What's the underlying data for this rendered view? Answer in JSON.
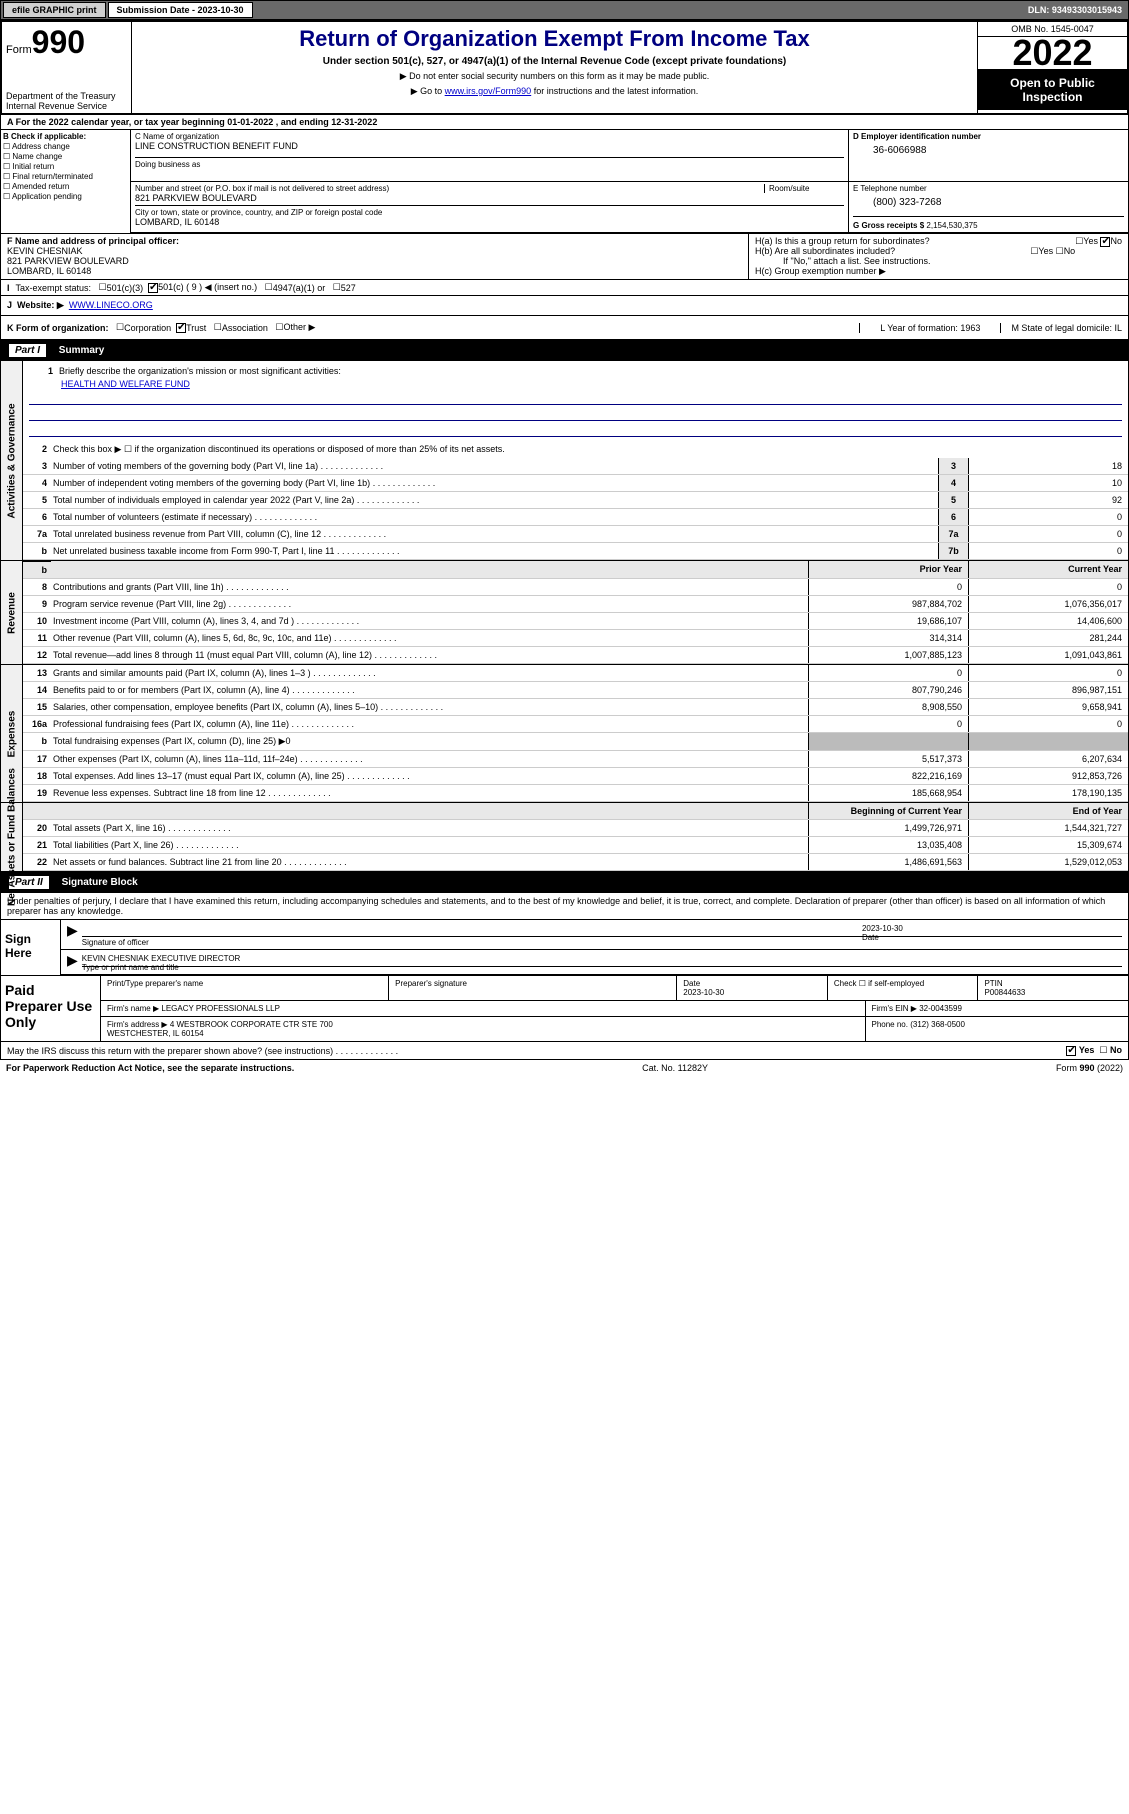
{
  "top": {
    "efile": "efile GRAPHIC print",
    "sub_label": "Submission Date - 2023-10-30",
    "dln": "DLN: 93493303015943"
  },
  "header": {
    "form_word": "Form",
    "form_num": "990",
    "title": "Return of Organization Exempt From Income Tax",
    "sub": "Under section 501(c), 527, or 4947(a)(1) of the Internal Revenue Code (except private foundations)",
    "note1": "▶ Do not enter social security numbers on this form as it may be made public.",
    "note2_pre": "▶ Go to ",
    "note2_link": "www.irs.gov/Form990",
    "note2_post": " for instructions and the latest information.",
    "dept": "Department of the Treasury\nInternal Revenue Service",
    "omb": "OMB No. 1545-0047",
    "year": "2022",
    "open": "Open to Public Inspection"
  },
  "row_a": "A For the 2022 calendar year, or tax year beginning 01-01-2022   , and ending 12-31-2022",
  "col_b": {
    "hdr": "B Check if applicable:",
    "items": [
      "Address change",
      "Name change",
      "Initial return",
      "Final return/terminated",
      "Amended return",
      "Application pending"
    ]
  },
  "col_c": {
    "name_lbl": "C Name of organization",
    "name": "LINE CONSTRUCTION BENEFIT FUND",
    "dba_lbl": "Doing business as",
    "addr_lbl": "Number and street (or P.O. box if mail is not delivered to street address)",
    "room_lbl": "Room/suite",
    "addr": "821 PARKVIEW BOULEVARD",
    "city_lbl": "City or town, state or province, country, and ZIP or foreign postal code",
    "city": "LOMBARD, IL  60148"
  },
  "col_d": {
    "lbl": "D Employer identification number",
    "val": "36-6066988",
    "e_lbl": "E Telephone number",
    "e_val": "(800) 323-7268",
    "g_lbl": "G Gross receipts $",
    "g_val": "2,154,530,375"
  },
  "fgh": {
    "f_lbl": "F Name and address of principal officer:",
    "f_val": "KEVIN CHESNIAK\n821 PARKVIEW BOULEVARD\nLOMBARD, IL  60148",
    "ha": "H(a)  Is this a group return for subordinates?",
    "hb": "H(b)  Are all subordinates included?",
    "hb_note": "If \"No,\" attach a list. See instructions.",
    "hc": "H(c)  Group exemption number ▶",
    "yes": "Yes",
    "no": "No"
  },
  "row_i": {
    "lbl": "I",
    "txt": "Tax-exempt status:",
    "o1": "501(c)(3)",
    "o2": "501(c) ( 9 ) ◀ (insert no.)",
    "o3": "4947(a)(1) or",
    "o4": "527"
  },
  "row_j": {
    "lbl": "J",
    "txt": "Website: ▶",
    "link": "WWW.LINECO.ORG"
  },
  "row_k": {
    "lbl": "K Form of organization:",
    "o1": "Corporation",
    "o2": "Trust",
    "o3": "Association",
    "o4": "Other ▶",
    "l": "L Year of formation: 1963",
    "m": "M State of legal domicile: IL"
  },
  "part1": {
    "tag": "Part I",
    "title": "Summary"
  },
  "p1": {
    "l1_lbl": "Briefly describe the organization's mission or most significant activities:",
    "l1_val": "HEALTH AND WELFARE FUND",
    "l2": "Check this box ▶ ☐  if the organization discontinued its operations or disposed of more than 25% of its net assets.",
    "lines_ag": [
      {
        "n": "3",
        "t": "Number of voting members of the governing body (Part VI, line 1a)",
        "b": "3",
        "v": "18"
      },
      {
        "n": "4",
        "t": "Number of independent voting members of the governing body (Part VI, line 1b)",
        "b": "4",
        "v": "10"
      },
      {
        "n": "5",
        "t": "Total number of individuals employed in calendar year 2022 (Part V, line 2a)",
        "b": "5",
        "v": "92"
      },
      {
        "n": "6",
        "t": "Total number of volunteers (estimate if necessary)",
        "b": "6",
        "v": "0"
      },
      {
        "n": "7a",
        "t": "Total unrelated business revenue from Part VIII, column (C), line 12",
        "b": "7a",
        "v": "0"
      },
      {
        "n": "b",
        "t": "Net unrelated business taxable income from Form 990-T, Part I, line 11",
        "b": "7b",
        "v": "0"
      }
    ],
    "py": "Prior Year",
    "cy": "Current Year",
    "rev": [
      {
        "n": "8",
        "t": "Contributions and grants (Part VIII, line 1h)",
        "p": "0",
        "c": "0"
      },
      {
        "n": "9",
        "t": "Program service revenue (Part VIII, line 2g)",
        "p": "987,884,702",
        "c": "1,076,356,017"
      },
      {
        "n": "10",
        "t": "Investment income (Part VIII, column (A), lines 3, 4, and 7d )",
        "p": "19,686,107",
        "c": "14,406,600"
      },
      {
        "n": "11",
        "t": "Other revenue (Part VIII, column (A), lines 5, 6d, 8c, 9c, 10c, and 11e)",
        "p": "314,314",
        "c": "281,244"
      },
      {
        "n": "12",
        "t": "Total revenue—add lines 8 through 11 (must equal Part VIII, column (A), line 12)",
        "p": "1,007,885,123",
        "c": "1,091,043,861"
      }
    ],
    "exp": [
      {
        "n": "13",
        "t": "Grants and similar amounts paid (Part IX, column (A), lines 1–3 )",
        "p": "0",
        "c": "0"
      },
      {
        "n": "14",
        "t": "Benefits paid to or for members (Part IX, column (A), line 4)",
        "p": "807,790,246",
        "c": "896,987,151"
      },
      {
        "n": "15",
        "t": "Salaries, other compensation, employee benefits (Part IX, column (A), lines 5–10)",
        "p": "8,908,550",
        "c": "9,658,941"
      },
      {
        "n": "16a",
        "t": "Professional fundraising fees (Part IX, column (A), line 11e)",
        "p": "0",
        "c": "0"
      }
    ],
    "l16b": "Total fundraising expenses (Part IX, column (D), line 25) ▶0",
    "exp2": [
      {
        "n": "17",
        "t": "Other expenses (Part IX, column (A), lines 11a–11d, 11f–24e)",
        "p": "5,517,373",
        "c": "6,207,634"
      },
      {
        "n": "18",
        "t": "Total expenses. Add lines 13–17 (must equal Part IX, column (A), line 25)",
        "p": "822,216,169",
        "c": "912,853,726"
      },
      {
        "n": "19",
        "t": "Revenue less expenses. Subtract line 18 from line 12",
        "p": "185,668,954",
        "c": "178,190,135"
      }
    ],
    "bcy": "Beginning of Current Year",
    "eoy": "End of Year",
    "na": [
      {
        "n": "20",
        "t": "Total assets (Part X, line 16)",
        "p": "1,499,726,971",
        "c": "1,544,321,727"
      },
      {
        "n": "21",
        "t": "Total liabilities (Part X, line 26)",
        "p": "13,035,408",
        "c": "15,309,674"
      },
      {
        "n": "22",
        "t": "Net assets or fund balances. Subtract line 21 from line 20",
        "p": "1,486,691,563",
        "c": "1,529,012,053"
      }
    ]
  },
  "side": {
    "ag": "Activities & Governance",
    "rev": "Revenue",
    "exp": "Expenses",
    "na": "Net Assets or Fund Balances"
  },
  "part2": {
    "tag": "Part II",
    "title": "Signature Block"
  },
  "sig": {
    "decl": "Under penalties of perjury, I declare that I have examined this return, including accompanying schedules and statements, and to the best of my knowledge and belief, it is true, correct, and complete. Declaration of preparer (other than officer) is based on all information of which preparer has any knowledge.",
    "sign_here": "Sign Here",
    "sig_officer": "Signature of officer",
    "date_lbl": "Date",
    "date_val": "2023-10-30",
    "name": "KEVIN CHESNIAK  EXECUTIVE DIRECTOR",
    "name_lbl": "Type or print name and title",
    "paid": "Paid Preparer Use Only",
    "pt_name": "Print/Type preparer's name",
    "pt_sig": "Preparer's signature",
    "pt_date_lbl": "Date",
    "pt_date": "2023-10-30",
    "pt_chk": "Check ☐ if self-employed",
    "ptin_lbl": "PTIN",
    "ptin": "P00844633",
    "firm_name_lbl": "Firm's name    ▶",
    "firm_name": "LEGACY PROFESSIONALS LLP",
    "firm_ein_lbl": "Firm's EIN ▶",
    "firm_ein": "32-0043599",
    "firm_addr_lbl": "Firm's address ▶",
    "firm_addr": "4 WESTBROOK CORPORATE CTR STE 700\nWESTCHESTER, IL  60154",
    "phone_lbl": "Phone no.",
    "phone": "(312) 368-0500"
  },
  "may_irs": "May the IRS discuss this return with the preparer shown above? (see instructions)",
  "footer": {
    "l": "For Paperwork Reduction Act Notice, see the separate instructions.",
    "m": "Cat. No. 11282Y",
    "r": "Form 990 (2022)"
  }
}
